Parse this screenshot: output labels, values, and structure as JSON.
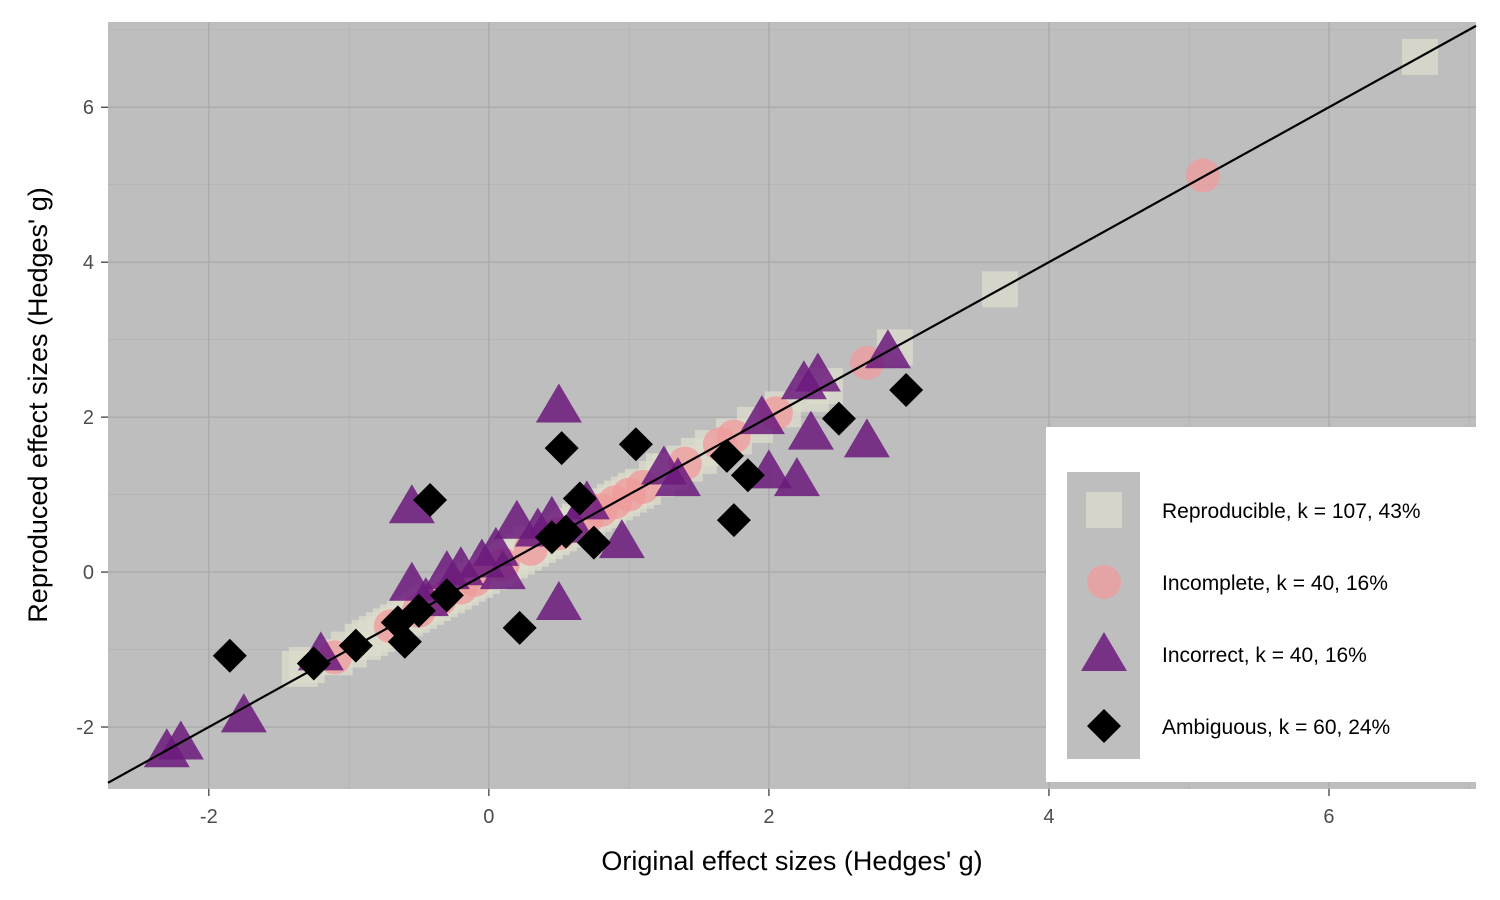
{
  "chart_data": {
    "type": "scatter",
    "title": "",
    "xlabel": "Original effect sizes (Hedges' g)",
    "ylabel": "Reproduced effect sizes (Hedges' g)",
    "xlim": [
      -2.72,
      7.05
    ],
    "ylim": [
      -2.8,
      7.1
    ],
    "x_ticks": [
      -2,
      0,
      2,
      4,
      6
    ],
    "y_ticks": [
      -2,
      0,
      2,
      4,
      6
    ],
    "tick_labels_x": [
      "-2",
      "0",
      "2",
      "4",
      "6"
    ],
    "tick_labels_y": [
      "-2",
      "0",
      "2",
      "4",
      "6"
    ],
    "grid": true,
    "reference_line": "y = x",
    "legend_position": "bottom-right",
    "colors": {
      "panel_background": "#bebebe",
      "grid_major": "#a6a6a6",
      "grid_minor": "#b3b3b3",
      "reproducible": "#dcdccc",
      "incomplete": "#f0999b",
      "incorrect": "#6b1a7d",
      "ambiguous": "#000000"
    },
    "series": [
      {
        "name": "Reproducible, k = 107, 43%",
        "shape": "square",
        "color": "#dcdccc",
        "points": [
          [
            6.65,
            6.65
          ],
          [
            3.65,
            3.65
          ],
          [
            2.9,
            2.9
          ],
          [
            2.4,
            2.4
          ],
          [
            2.3,
            2.3
          ],
          [
            2.1,
            2.1
          ],
          [
            1.9,
            1.9
          ],
          [
            1.75,
            1.75
          ],
          [
            1.6,
            1.6
          ],
          [
            1.5,
            1.5
          ],
          [
            1.4,
            1.4
          ],
          [
            1.3,
            1.3
          ],
          [
            1.2,
            1.2
          ],
          [
            1.1,
            1.1
          ],
          [
            1.05,
            1.05
          ],
          [
            1.0,
            1.0
          ],
          [
            0.95,
            0.95
          ],
          [
            0.9,
            0.9
          ],
          [
            0.85,
            0.85
          ],
          [
            0.8,
            0.8
          ],
          [
            0.75,
            0.75
          ],
          [
            0.7,
            0.7
          ],
          [
            0.65,
            0.65
          ],
          [
            0.6,
            0.6
          ],
          [
            0.55,
            0.55
          ],
          [
            0.5,
            0.5
          ],
          [
            0.45,
            0.45
          ],
          [
            0.4,
            0.4
          ],
          [
            0.35,
            0.35
          ],
          [
            0.3,
            0.3
          ],
          [
            0.25,
            0.25
          ],
          [
            0.2,
            0.2
          ],
          [
            0.15,
            0.15
          ],
          [
            0.1,
            0.1
          ],
          [
            0.05,
            0.05
          ],
          [
            0.0,
            0.0
          ],
          [
            -0.05,
            -0.05
          ],
          [
            -0.1,
            -0.1
          ],
          [
            -0.15,
            -0.15
          ],
          [
            -0.2,
            -0.2
          ],
          [
            -0.25,
            -0.25
          ],
          [
            -0.3,
            -0.3
          ],
          [
            -0.35,
            -0.35
          ],
          [
            -0.4,
            -0.4
          ],
          [
            -0.45,
            -0.45
          ],
          [
            -0.5,
            -0.5
          ],
          [
            -0.55,
            -0.55
          ],
          [
            -0.6,
            -0.6
          ],
          [
            -0.65,
            -0.65
          ],
          [
            -0.7,
            -0.7
          ],
          [
            -0.75,
            -0.75
          ],
          [
            -0.8,
            -0.8
          ],
          [
            -0.85,
            -0.85
          ],
          [
            -0.9,
            -0.9
          ],
          [
            -1.0,
            -1.0
          ],
          [
            -1.1,
            -1.1
          ],
          [
            -1.3,
            -1.2
          ],
          [
            -1.35,
            -1.25
          ],
          [
            0.3,
            0.35
          ],
          [
            1.25,
            1.3
          ]
        ]
      },
      {
        "name": "Incomplete, k = 40, 16%",
        "shape": "circle",
        "color": "#f0999b",
        "points": [
          [
            5.1,
            5.12
          ],
          [
            2.7,
            2.7
          ],
          [
            2.05,
            2.05
          ],
          [
            1.75,
            1.75
          ],
          [
            1.65,
            1.65
          ],
          [
            1.4,
            1.4
          ],
          [
            1.1,
            1.1
          ],
          [
            1.0,
            1.0
          ],
          [
            0.8,
            0.8
          ],
          [
            0.7,
            0.7
          ],
          [
            0.5,
            0.5
          ],
          [
            0.3,
            0.3
          ],
          [
            0.1,
            0.1
          ],
          [
            -0.1,
            -0.1
          ],
          [
            -0.2,
            -0.2
          ],
          [
            -0.35,
            -0.35
          ],
          [
            -0.5,
            -0.5
          ],
          [
            -0.7,
            -0.7
          ],
          [
            -1.1,
            -1.1
          ],
          [
            0.9,
            0.9
          ]
        ]
      },
      {
        "name": "Incorrect, k = 40, 16%",
        "shape": "triangle",
        "color": "#6b1a7d",
        "points": [
          [
            0.5,
            2.15
          ],
          [
            -0.55,
            0.85
          ],
          [
            0.5,
            -0.4
          ],
          [
            2.85,
            2.85
          ],
          [
            2.35,
            2.55
          ],
          [
            2.25,
            2.45
          ],
          [
            1.95,
            2.0
          ],
          [
            2.3,
            1.8
          ],
          [
            2.7,
            1.7
          ],
          [
            2.2,
            1.2
          ],
          [
            2.0,
            1.3
          ],
          [
            1.35,
            1.2
          ],
          [
            1.25,
            1.35
          ],
          [
            0.95,
            0.4
          ],
          [
            0.7,
            0.9
          ],
          [
            0.45,
            0.7
          ],
          [
            0.35,
            0.55
          ],
          [
            0.2,
            0.65
          ],
          [
            0.05,
            0.3
          ],
          [
            -0.05,
            0.15
          ],
          [
            -0.2,
            0.05
          ],
          [
            -0.3,
            0.0
          ],
          [
            -0.55,
            -0.15
          ],
          [
            -1.75,
            -1.85
          ],
          [
            -2.2,
            -2.2
          ],
          [
            -2.3,
            -2.3
          ],
          [
            -1.2,
            -1.05
          ],
          [
            0.6,
            0.6
          ],
          [
            0.1,
            0.0
          ],
          [
            -0.45,
            -0.35
          ]
        ]
      },
      {
        "name": "Ambiguous, k = 60, 24%",
        "shape": "diamond",
        "color": "#000000",
        "points": [
          [
            2.98,
            2.35
          ],
          [
            2.5,
            1.98
          ],
          [
            1.05,
            1.65
          ],
          [
            0.52,
            1.6
          ],
          [
            -0.42,
            0.93
          ],
          [
            1.7,
            1.5
          ],
          [
            1.85,
            1.25
          ],
          [
            1.75,
            0.67
          ],
          [
            0.65,
            0.95
          ],
          [
            0.75,
            0.38
          ],
          [
            0.55,
            0.52
          ],
          [
            0.45,
            0.45
          ],
          [
            0.22,
            -0.72
          ],
          [
            -0.95,
            -0.95
          ],
          [
            -0.6,
            -0.9
          ],
          [
            -0.65,
            -0.65
          ],
          [
            -0.5,
            -0.5
          ],
          [
            -0.3,
            -0.3
          ],
          [
            -1.85,
            -1.08
          ],
          [
            -1.25,
            -1.18
          ]
        ]
      }
    ]
  }
}
